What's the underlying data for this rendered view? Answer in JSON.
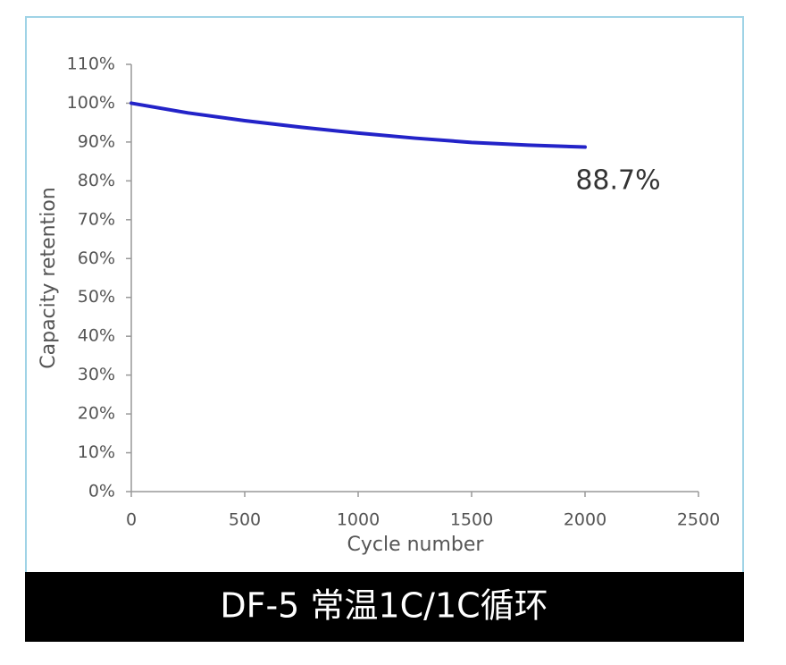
{
  "chart_data": {
    "type": "line",
    "x_label": "Cycle number",
    "y_label": "Capacity retention",
    "annotation": "88.7%",
    "caption": "DF-5 常温1C/1C循环",
    "series": [
      {
        "color": "#2323c8",
        "x": [
          0,
          250,
          500,
          750,
          1000,
          1250,
          1500,
          1750,
          2000
        ],
        "values": [
          100,
          97.5,
          95.5,
          93.8,
          92.3,
          91.0,
          89.9,
          89.2,
          88.7
        ]
      }
    ],
    "xlim": [
      0,
      2500
    ],
    "xticks": [
      0,
      500,
      1000,
      1500,
      2000,
      2500
    ],
    "ylim": [
      0,
      110
    ],
    "yticks": [
      {
        "value": 0,
        "label": "0%"
      },
      {
        "value": 10,
        "label": "10%"
      },
      {
        "value": 20,
        "label": "20%"
      },
      {
        "value": 30,
        "label": "30%"
      },
      {
        "value": 40,
        "label": "40%"
      },
      {
        "value": 50,
        "label": "50%"
      },
      {
        "value": 60,
        "label": "60%"
      },
      {
        "value": 70,
        "label": "70%"
      },
      {
        "value": 80,
        "label": "80%"
      },
      {
        "value": 90,
        "label": "90%"
      },
      {
        "value": 100,
        "label": "100%"
      },
      {
        "value": 110,
        "label": "110%"
      }
    ],
    "grid": false
  }
}
